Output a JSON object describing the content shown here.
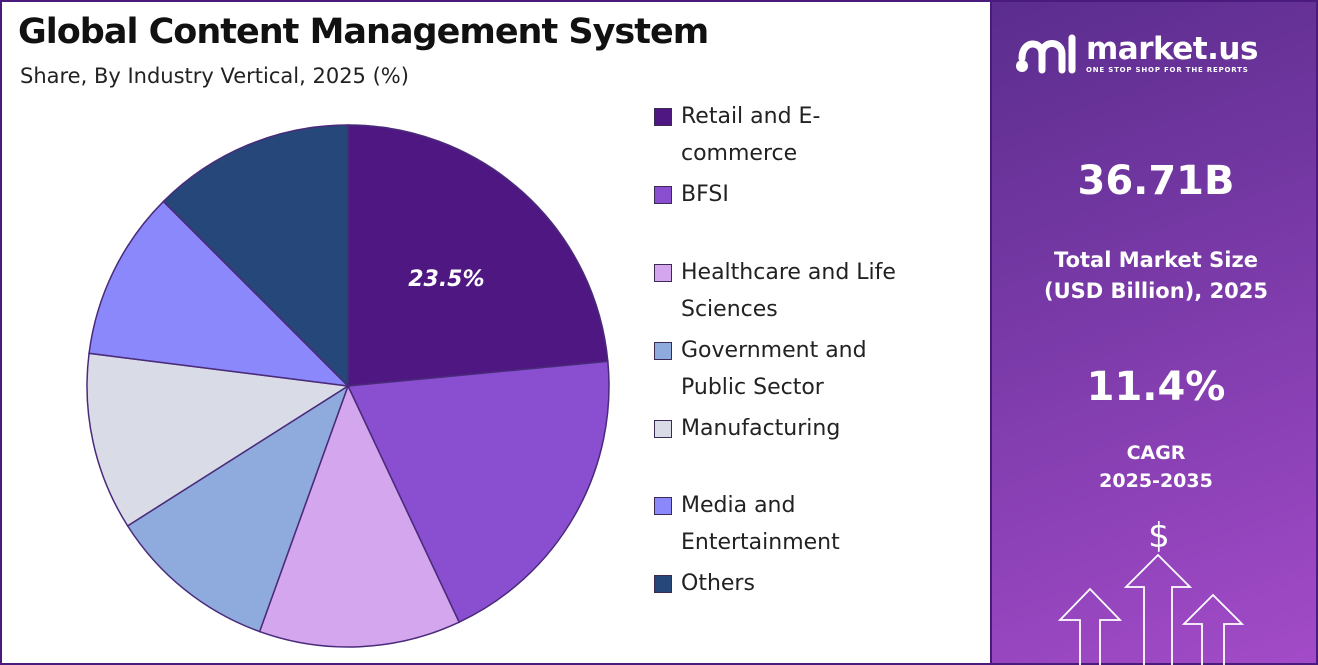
{
  "chart_data": {
    "type": "pie",
    "title": "Global Content Management System",
    "subtitle": "Share, By Industry Vertical, 2025 (%)",
    "categories": [
      "Retail and E-commerce",
      "BFSI",
      "Healthcare and Life Sciences",
      "Government and Public Sector",
      "Manufacturing",
      "Media and Entertainment",
      "Others"
    ],
    "legend_lines": [
      [
        "Retail and E-",
        "commerce"
      ],
      [
        "BFSI"
      ],
      [
        "Healthcare and Life",
        "Sciences"
      ],
      [
        "Government and",
        "Public Sector"
      ],
      [
        "Manufacturing"
      ],
      [
        "Media and",
        "Entertainment"
      ],
      [
        "Others"
      ]
    ],
    "values": [
      23.5,
      19.5,
      12.5,
      10.5,
      11.0,
      10.5,
      12.5
    ],
    "colors": [
      "#4e1782",
      "#8a4fd1",
      "#d4a6ee",
      "#8faadc",
      "#d9dce6",
      "#8b88fb",
      "#26477a"
    ],
    "data_labels": [
      "23.5%",
      "",
      "",
      "",
      "",
      "",
      ""
    ],
    "start_angle_deg": 0,
    "direction": "clockwise",
    "legend_position": "right"
  },
  "side_panel": {
    "brand_name": "market.us",
    "brand_tagline": "ONE STOP SHOP FOR THE REPORTS",
    "market_size_value": "36.71B",
    "market_size_label_line1": "Total Market Size",
    "market_size_label_line2": "(USD Billion), 2025",
    "cagr_value": "11.4%",
    "cagr_label_line1": "CAGR",
    "cagr_label_line2": "2025-2035",
    "dollar_symbol": "$",
    "icons": [
      "market-us-logo-icon",
      "dollar-icon",
      "up-arrow-icon"
    ]
  }
}
